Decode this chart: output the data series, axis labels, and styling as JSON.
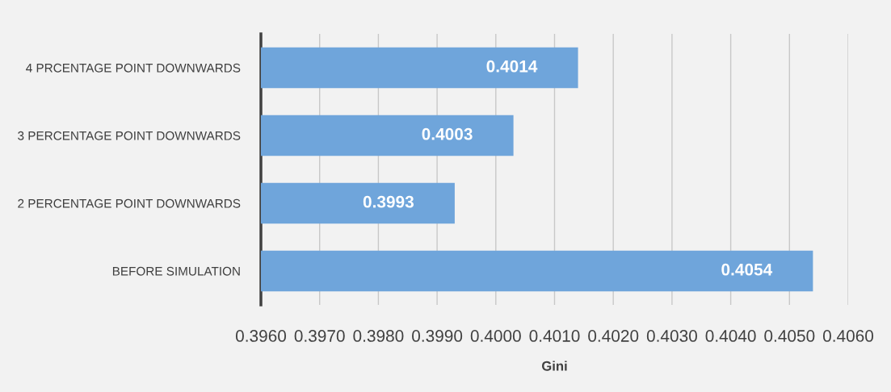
{
  "chart_data": {
    "type": "bar",
    "orientation": "horizontal",
    "xlabel": "Gini",
    "categories": [
      "4 PRCENTAGE POINT DOWNWARDS",
      "3 PERCENTAGE POINT DOWNWARDS",
      "2 PERCENTAGE POINT DOWNWARDS",
      "BEFORE SIMULATION"
    ],
    "values": [
      0.4014,
      0.4003,
      0.3993,
      0.4054
    ],
    "color": "#6fa5db",
    "xlim": [
      0.396,
      0.406
    ],
    "xticks": [
      {
        "value": 0.396,
        "label": "0.3960"
      },
      {
        "value": 0.397,
        "label": "0.3970"
      },
      {
        "value": 0.398,
        "label": "0.3980"
      },
      {
        "value": 0.399,
        "label": "0.3990"
      },
      {
        "value": 0.4,
        "label": "0.4000"
      },
      {
        "value": 0.401,
        "label": "0.4010"
      },
      {
        "value": 0.402,
        "label": "0.4020"
      },
      {
        "value": 0.403,
        "label": "0.4030"
      },
      {
        "value": 0.404,
        "label": "0.4040"
      },
      {
        "value": 0.405,
        "label": "0.4050"
      },
      {
        "value": 0.406,
        "label": "0.4060"
      }
    ],
    "grid": "x",
    "data_labels": true
  }
}
